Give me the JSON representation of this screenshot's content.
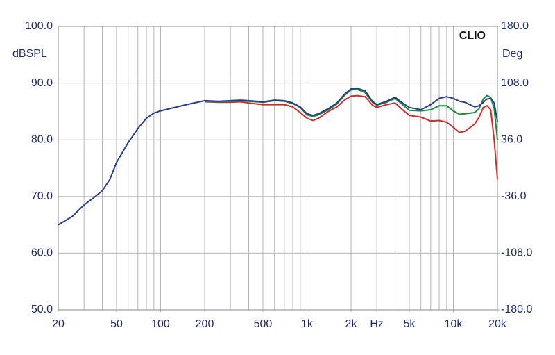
{
  "chart_data": {
    "type": "line",
    "brand": "CLIO",
    "y_label": "dBSPL",
    "y2_label": "Deg",
    "x_log": true,
    "grid": true,
    "xlim": [
      20,
      20000
    ],
    "xticks": [
      {
        "value": 20,
        "label": "20"
      },
      {
        "value": 50,
        "label": "50"
      },
      {
        "value": 100,
        "label": "100"
      },
      {
        "value": 200,
        "label": "200"
      },
      {
        "value": 500,
        "label": "500"
      },
      {
        "value": 1000,
        "label": "1k"
      },
      {
        "value": 2000,
        "label": "2k"
      },
      {
        "value": 3000,
        "label": "Hz"
      },
      {
        "value": 5000,
        "label": "5k"
      },
      {
        "value": 10000,
        "label": "10k"
      },
      {
        "value": 20000,
        "label": "20k"
      }
    ],
    "xgrid": [
      20,
      30,
      40,
      50,
      60,
      70,
      80,
      90,
      100,
      200,
      300,
      400,
      500,
      600,
      700,
      800,
      900,
      1000,
      2000,
      3000,
      4000,
      5000,
      6000,
      7000,
      8000,
      9000,
      10000,
      20000
    ],
    "ylim": [
      50,
      100
    ],
    "yticks": [
      {
        "value": 50,
        "label": "50.0"
      },
      {
        "value": 60,
        "label": "60.0"
      },
      {
        "value": 70,
        "label": "70.0"
      },
      {
        "value": 80,
        "label": "80.0"
      },
      {
        "value": 90,
        "label": "90.0"
      },
      {
        "value": 100,
        "label": "100.0"
      }
    ],
    "y2lim": [
      -180,
      180
    ],
    "y2ticks": [
      {
        "value": -180,
        "label": "-180.0"
      },
      {
        "value": -108,
        "label": "-108.0"
      },
      {
        "value": -36,
        "label": "-36.0"
      },
      {
        "value": 36,
        "label": "36.0"
      },
      {
        "value": 108,
        "label": "108.0"
      },
      {
        "value": 180,
        "label": "180.0"
      }
    ],
    "x": [
      20,
      25,
      30,
      35,
      40,
      45,
      50,
      60,
      70,
      80,
      90,
      100,
      120,
      150,
      200,
      250,
      300,
      350,
      400,
      500,
      600,
      700,
      800,
      900,
      1000,
      1100,
      1200,
      1400,
      1600,
      1800,
      2000,
      2200,
      2500,
      2800,
      3000,
      3500,
      4000,
      4500,
      5000,
      6000,
      7000,
      8000,
      9000,
      10000,
      11000,
      12000,
      14000,
      15000,
      16000,
      17000,
      18000,
      19000,
      20000
    ],
    "series": [
      {
        "color": "#d42a2a",
        "values": [
          null,
          null,
          null,
          null,
          null,
          null,
          null,
          null,
          null,
          null,
          null,
          null,
          null,
          null,
          86.7,
          86.6,
          86.6,
          86.7,
          86.5,
          86.2,
          86.2,
          86.2,
          85.8,
          84.8,
          83.8,
          83.4,
          83.8,
          85,
          85.8,
          87,
          87.7,
          87.8,
          87.6,
          86.1,
          85.7,
          86.2,
          86.5,
          85.3,
          84.3,
          84,
          83.3,
          83.4,
          83.1,
          82.2,
          81.3,
          81.5,
          82.8,
          84,
          85.7,
          86,
          85.3,
          80,
          73
        ]
      },
      {
        "color": "#1a8a3c",
        "values": [
          null,
          null,
          null,
          null,
          null,
          null,
          null,
          null,
          null,
          null,
          null,
          null,
          null,
          null,
          86.8,
          86.7,
          86.8,
          86.9,
          86.8,
          86.6,
          86.9,
          86.8,
          86.4,
          85.7,
          84.4,
          84.1,
          84.4,
          85.3,
          86.3,
          87.8,
          88.8,
          88.9,
          88.3,
          86.6,
          86.1,
          86.6,
          87.3,
          86.2,
          85.2,
          85.1,
          85.3,
          86,
          86,
          85.1,
          84.5,
          84.6,
          84.8,
          85.5,
          87.2,
          87.8,
          87.5,
          85.5,
          80
        ]
      },
      {
        "color": "#2a3d8c",
        "values": [
          65,
          66.5,
          68.5,
          69.8,
          71,
          73,
          76,
          79.5,
          82,
          83.8,
          84.7,
          85.1,
          85.6,
          86.2,
          86.9,
          86.8,
          86.9,
          87,
          86.9,
          86.7,
          87,
          86.9,
          86.5,
          85.8,
          84.6,
          84.3,
          84.6,
          85.5,
          86.5,
          88,
          89,
          89.1,
          88.6,
          86.8,
          86.2,
          86.8,
          87.5,
          86.5,
          85.7,
          85.3,
          86.2,
          87.3,
          87.6,
          87.3,
          86.8,
          86.6,
          85.8,
          86,
          86.6,
          87.2,
          87.3,
          86.5,
          83.2
        ]
      }
    ]
  }
}
